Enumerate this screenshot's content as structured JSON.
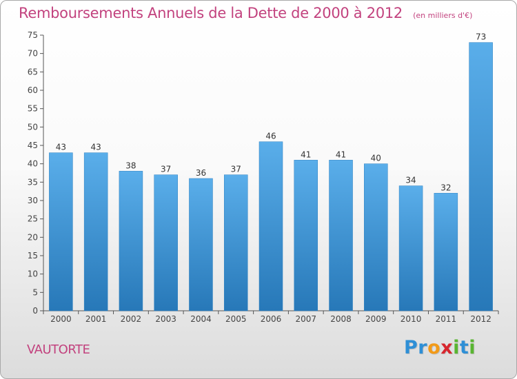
{
  "header": {
    "title": "Remboursements Annuels de la Dette de 2000 à 2012",
    "subtitle": "(en milliers d'€)"
  },
  "footer": {
    "place": "VAUTORTE",
    "logo_letters": [
      {
        "ch": "P",
        "color": "#2e8fd6"
      },
      {
        "ch": "r",
        "color": "#2e8fd6"
      },
      {
        "ch": "o",
        "color": "#f29a18"
      },
      {
        "ch": "x",
        "color": "#d7262e"
      },
      {
        "ch": "i",
        "color": "#59b531"
      },
      {
        "ch": "t",
        "color": "#2e8fd6"
      },
      {
        "ch": "i",
        "color": "#59b531"
      }
    ]
  },
  "chart_data": {
    "type": "bar",
    "title": "Remboursements Annuels de la Dette de 2000 à 2012",
    "subtitle": "(en milliers d'€)",
    "xlabel": "",
    "ylabel": "",
    "categories": [
      "2000",
      "2001",
      "2002",
      "2003",
      "2004",
      "2005",
      "2006",
      "2007",
      "2008",
      "2009",
      "2010",
      "2011",
      "2012"
    ],
    "values": [
      43,
      43,
      38,
      37,
      36,
      37,
      46,
      41,
      41,
      40,
      34,
      32,
      73
    ],
    "ylim": [
      0,
      75
    ],
    "yticks": [
      0,
      5,
      10,
      15,
      20,
      25,
      30,
      35,
      40,
      45,
      50,
      55,
      60,
      65,
      70,
      75
    ],
    "grid": false,
    "data_labels": true,
    "bar_color_top": "#5aaeea",
    "bar_color_bottom": "#2778b8"
  }
}
